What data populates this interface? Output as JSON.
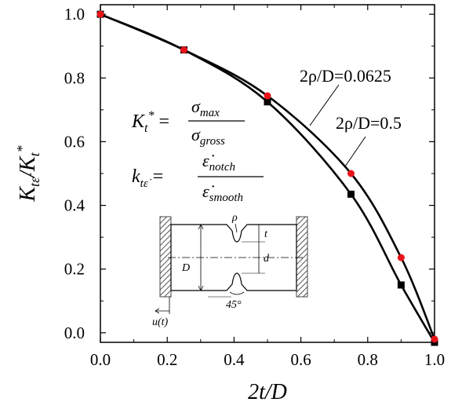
{
  "chart_data": {
    "type": "line",
    "xlabel": "2t/D",
    "ylabel": "K_tε̇/K_t*",
    "xlim": [
      0.0,
      1.0
    ],
    "ylim": [
      -0.03,
      1.03
    ],
    "x_ticks": [
      "0.0",
      "0.2",
      "0.4",
      "0.6",
      "0.8",
      "1.0"
    ],
    "y_ticks": [
      "0.0",
      "0.2",
      "0.4",
      "0.6",
      "0.8",
      "1.0"
    ],
    "grid": false,
    "series": [
      {
        "name": "2ρ/D=0.0625",
        "color": "#000000",
        "marker_color": "#e8141a",
        "marker": "circle",
        "x": [
          0.0,
          0.25,
          0.5,
          0.75,
          0.9,
          1.0
        ],
        "y": [
          1.0,
          0.888,
          0.744,
          0.5,
          0.236,
          -0.02
        ]
      },
      {
        "name": "2ρ/D=0.5",
        "color": "#000000",
        "marker_color": "#000000",
        "marker": "square",
        "x": [
          0.0,
          0.25,
          0.5,
          0.75,
          0.9,
          1.0
        ],
        "y": [
          1.0,
          0.888,
          0.725,
          0.435,
          0.15,
          -0.03
        ]
      }
    ],
    "annotations": {
      "eq1": {
        "lhs": "K",
        "lhs_sub": "t",
        "lhs_sup": "*",
        "num": "σ",
        "num_sub": "max",
        "den": "σ",
        "den_sub": "gross"
      },
      "eq2": {
        "lhs": "k",
        "lhs_sub": "tε̇",
        "num": "ε̇",
        "num_sub": "notch",
        "den": "ε̇",
        "den_sub": "smooth"
      },
      "label_series1": "2ρ/D=0.0625",
      "label_series2": "2ρ/D=0.5"
    },
    "schematic_labels": {
      "rho": "ρ",
      "t": "t",
      "d": "d",
      "D": "D",
      "angle": "45°",
      "displacement": "u(t)"
    }
  }
}
